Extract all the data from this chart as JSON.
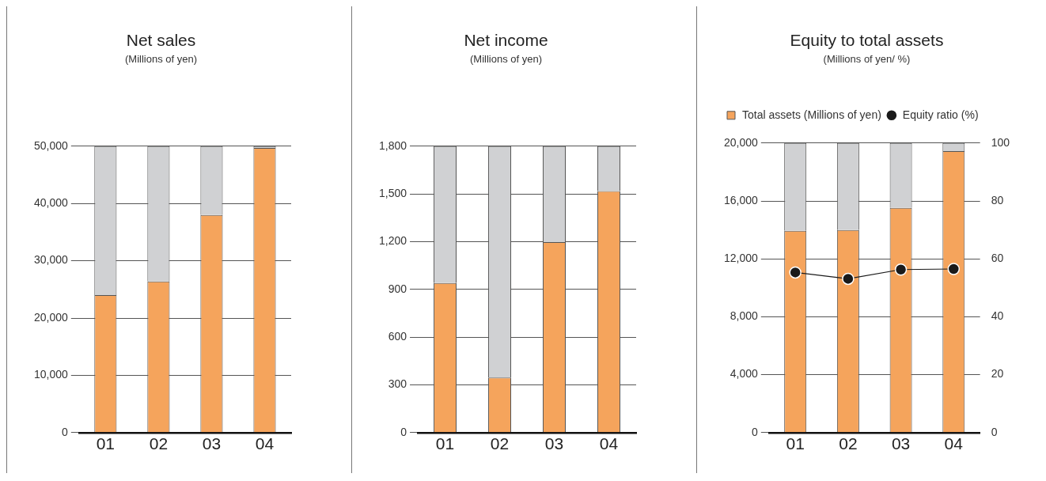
{
  "chart_data": [
    {
      "type": "bar",
      "title": "Net sales",
      "subtitle": "(Millions of yen)",
      "categories": [
        "01",
        "02",
        "03",
        "04"
      ],
      "stacked": true,
      "series": [
        {
          "color": "#f5a45c",
          "values": [
            24000,
            26400,
            38000,
            49700
          ]
        },
        {
          "color": "#d0d1d3",
          "values": [
            26000,
            23600,
            12000,
            300
          ]
        }
      ],
      "ylim": [
        0,
        50000
      ],
      "yticks": [
        0,
        {
          "value": 10000,
          "label": "10,000"
        },
        {
          "value": 20000,
          "label": "20,000"
        },
        {
          "value": 30000,
          "label": "30,000"
        },
        {
          "value": 40000,
          "label": "40,000"
        },
        {
          "value": 50000,
          "label": "50,000"
        }
      ],
      "grid": "y"
    },
    {
      "type": "bar",
      "title": "Net income",
      "subtitle": "(Millions of yen)",
      "categories": [
        "01",
        "02",
        "03",
        "04"
      ],
      "stacked": true,
      "series": [
        {
          "color": "#f5a45c",
          "values": [
            940,
            346,
            1197,
            1518
          ]
        },
        {
          "color": "#d0d1d3",
          "values": [
            860,
            1454,
            603,
            282
          ]
        }
      ],
      "ylim": [
        0,
        1800
      ],
      "yticks": [
        0,
        300,
        600,
        900,
        {
          "value": 1200,
          "label": "1,200"
        },
        {
          "value": 1500,
          "label": "1,500"
        },
        {
          "value": 1800,
          "label": "1,800"
        }
      ],
      "grid": "y"
    },
    {
      "type": "bar",
      "title": "Equity to total assets",
      "subtitle": "(Millions of yen/ %)",
      "categories": [
        "01",
        "02",
        "03",
        "04"
      ],
      "stacked": true,
      "series": [
        {
          "name": "Total assets (Millions of yen)",
          "color": "#f5a45c",
          "values": [
            13940,
            13990,
            15520,
            19440
          ]
        },
        {
          "color": "#d0d1d3",
          "values": [
            6060,
            6010,
            4480,
            560
          ]
        },
        {
          "name": "Equity ratio (%)",
          "type": "line",
          "axis": "y2",
          "color": "#1a1a1a",
          "marker": "circle",
          "values": [
            55.3,
            53.1,
            56.3,
            56.5
          ]
        }
      ],
      "ylim": [
        0,
        20000
      ],
      "yticks": [
        0,
        {
          "value": 4000,
          "label": "4,000"
        },
        {
          "value": 8000,
          "label": "8,000"
        },
        {
          "value": 12000,
          "label": "12,000"
        },
        {
          "value": 16000,
          "label": "16,000"
        },
        {
          "value": 20000,
          "label": "20,000"
        }
      ],
      "y2lim": [
        0,
        100
      ],
      "y2ticks": [
        0,
        20,
        40,
        60,
        80,
        100
      ],
      "grid": "y",
      "legend": "top left"
    }
  ]
}
